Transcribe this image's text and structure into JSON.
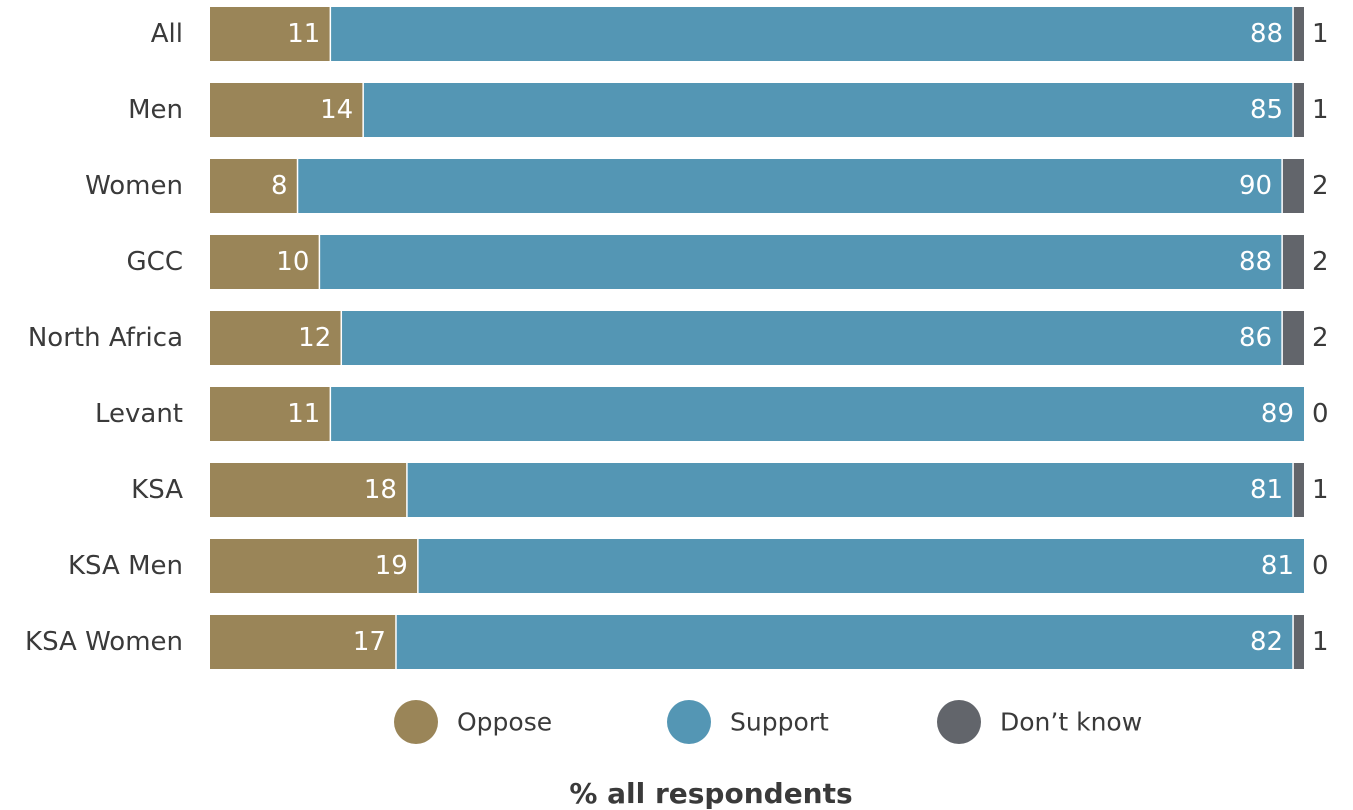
{
  "chart_data": {
    "type": "bar",
    "orientation": "horizontal",
    "stacked": true,
    "categories": [
      "All",
      "Men",
      "Women",
      "GCC",
      "North Africa",
      "Levant",
      "KSA",
      "KSA Men",
      "KSA Women"
    ],
    "series": [
      {
        "name": "Oppose",
        "color": "#9a8558",
        "values": [
          11,
          14,
          8,
          10,
          12,
          11,
          18,
          19,
          17
        ]
      },
      {
        "name": "Support",
        "color": "#5496b4",
        "values": [
          88,
          85,
          90,
          88,
          86,
          89,
          81,
          81,
          82
        ]
      },
      {
        "name": "Don’t know",
        "color": "#62656b",
        "values": [
          1,
          1,
          2,
          2,
          2,
          0,
          1,
          0,
          1
        ]
      }
    ],
    "xlim": [
      0,
      100
    ],
    "legend_position": "bottom",
    "grid": false,
    "xlabel": "% all respondents"
  }
}
